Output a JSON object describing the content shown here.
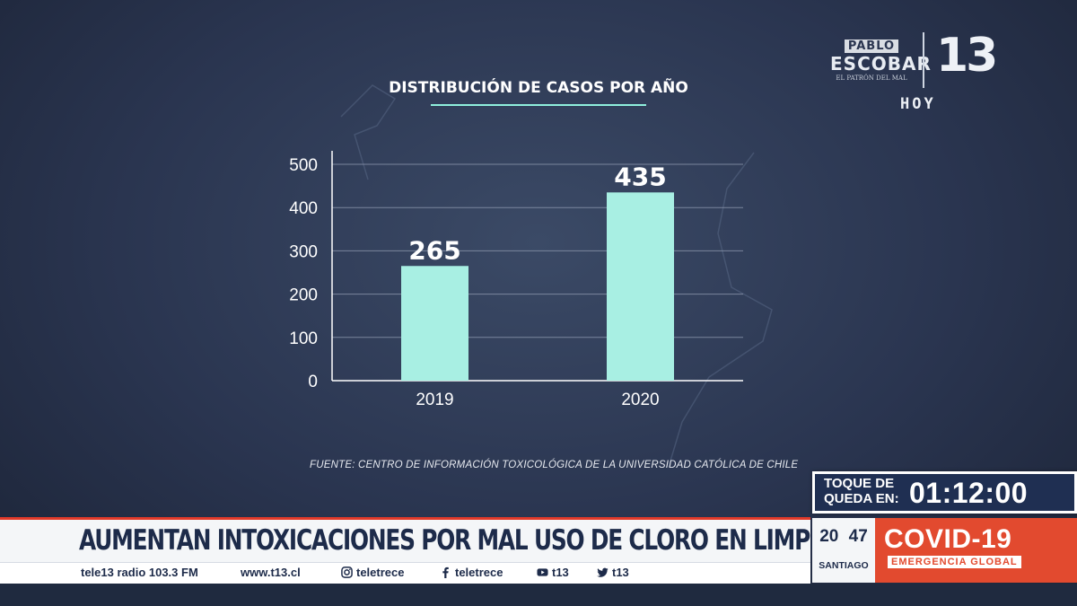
{
  "brand": {
    "show_logo_line1": "PABLO",
    "show_logo_line2": "ESCOBAR",
    "show_logo_line3": "EL PATRÓN DEL MAL",
    "channel_logo": "13",
    "program": "HOY"
  },
  "chart_data": {
    "type": "bar",
    "title": "DISTRIBUCIÓN DE CASOS POR AÑO",
    "categories": [
      "2019",
      "2020"
    ],
    "values": [
      265,
      435
    ],
    "value_labels": [
      "265",
      "435"
    ],
    "yticks": [
      "0",
      "100",
      "200",
      "300",
      "400",
      "500"
    ],
    "ylim": [
      0,
      500
    ],
    "grid": true,
    "bar_color": "#a8efe3"
  },
  "source": "FUENTE: CENTRO DE INFORMACIÓN TOXICOLÓGICA DE LA UNIVERSIDAD CATÓLICA DE CHILE",
  "curfew": {
    "label_line1": "TOQUE DE",
    "label_line2": "QUEDA EN:",
    "time": "01:12:00"
  },
  "headline": "AUMENTAN INTOXICACIONES POR MAL USO DE CLORO EN LIMPIEZA",
  "ticker": {
    "radio": "tele13 radio 103.3 FM",
    "web": "www.t13.cl",
    "instagram": "teletrece",
    "facebook": "teletrece",
    "youtube": "t13",
    "twitter": "t13"
  },
  "clock": {
    "time": "20 47",
    "city": "SANTIAGO"
  },
  "covid": {
    "title": "COVID-19",
    "subtitle": "EMERGENCIA GLOBAL"
  },
  "colors": {
    "accent_red": "#e24a2f",
    "navy": "#1d2b4a",
    "bar": "#a8efe3",
    "title_underline": "#8ff0dd"
  }
}
